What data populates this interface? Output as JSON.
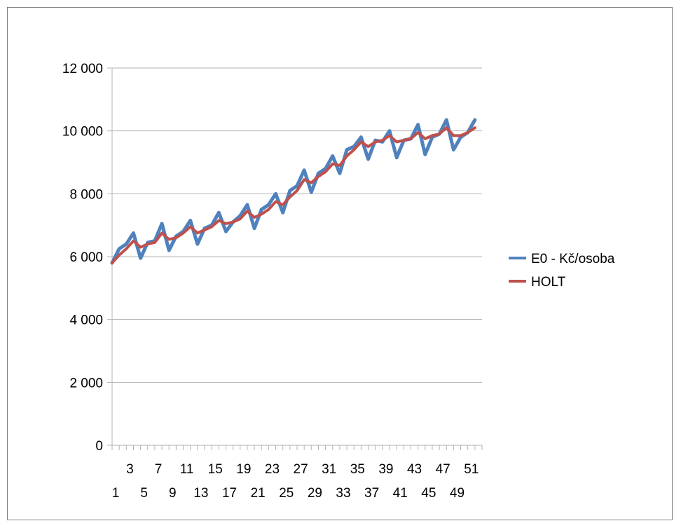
{
  "chart_data": {
    "type": "line",
    "x": [
      1,
      2,
      3,
      4,
      5,
      6,
      7,
      8,
      9,
      10,
      11,
      12,
      13,
      14,
      15,
      16,
      17,
      18,
      19,
      20,
      21,
      22,
      23,
      24,
      25,
      26,
      27,
      28,
      29,
      30,
      31,
      32,
      33,
      34,
      35,
      36,
      37,
      38,
      39,
      40,
      41,
      42,
      43,
      44,
      45,
      46,
      47,
      48,
      49,
      50,
      51,
      52
    ],
    "x_tick_labels_upper": [
      "3",
      "7",
      "11",
      "15",
      "19",
      "23",
      "27",
      "31",
      "35",
      "39",
      "43",
      "47",
      "51"
    ],
    "x_tick_labels_lower": [
      "1",
      "5",
      "9",
      "13",
      "17",
      "21",
      "25",
      "29",
      "33",
      "37",
      "41",
      "45",
      "49"
    ],
    "ylim": [
      0,
      12000
    ],
    "y_ticks": [
      0,
      2000,
      4000,
      6000,
      8000,
      10000,
      12000
    ],
    "y_tick_labels": [
      "0",
      "2 000",
      "4 000",
      "6 000",
      "8 000",
      "10 000",
      "12 000"
    ],
    "grid": true,
    "legend_position": "right",
    "series": [
      {
        "name": "E0 - Kč/osoba",
        "color": "#4f81bd",
        "values": [
          5800,
          6250,
          6400,
          6750,
          5950,
          6450,
          6500,
          7050,
          6200,
          6650,
          6800,
          7150,
          6400,
          6900,
          7000,
          7400,
          6800,
          7100,
          7300,
          7650,
          6900,
          7500,
          7650,
          8000,
          7400,
          8100,
          8250,
          8750,
          8050,
          8650,
          8800,
          9200,
          8650,
          9400,
          9500,
          9800,
          9100,
          9700,
          9650,
          10000,
          9150,
          9700,
          9750,
          10200,
          9250,
          9800,
          9900,
          10350,
          9400,
          9800,
          9950,
          10350
        ]
      },
      {
        "name": "HOLT",
        "color": "#c0504d",
        "values": [
          5800,
          6050,
          6250,
          6500,
          6300,
          6400,
          6450,
          6750,
          6550,
          6600,
          6750,
          6950,
          6750,
          6850,
          6950,
          7150,
          7050,
          7100,
          7200,
          7450,
          7250,
          7350,
          7500,
          7750,
          7650,
          7900,
          8100,
          8450,
          8350,
          8550,
          8700,
          8950,
          8900,
          9200,
          9400,
          9650,
          9500,
          9650,
          9700,
          9850,
          9650,
          9700,
          9750,
          9950,
          9750,
          9850,
          9900,
          10100,
          9850,
          9850,
          9950,
          10100
        ]
      }
    ]
  }
}
